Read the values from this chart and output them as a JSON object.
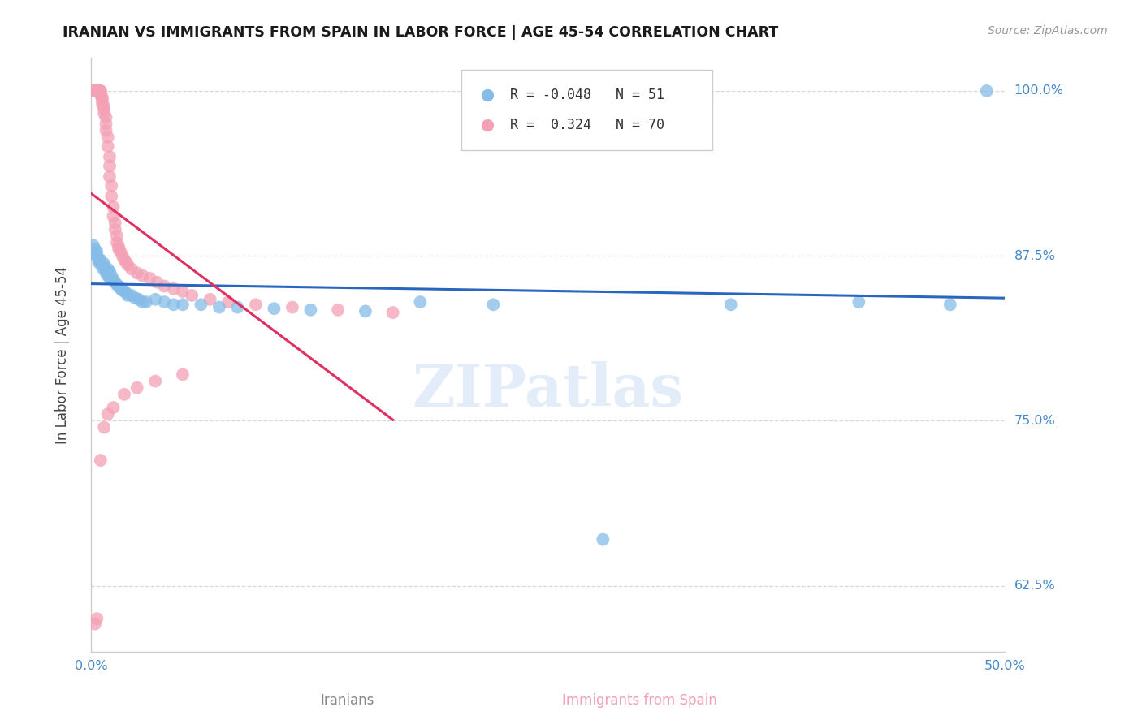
{
  "title": "IRANIAN VS IMMIGRANTS FROM SPAIN IN LABOR FORCE | AGE 45-54 CORRELATION CHART",
  "source": "Source: ZipAtlas.com",
  "ylabel": "In Labor Force | Age 45-54",
  "xlabel_iranians": "Iranians",
  "xlabel_spain": "Immigrants from Spain",
  "xmin": 0.0,
  "xmax": 0.5,
  "ymin": 0.575,
  "ymax": 1.025,
  "yticks": [
    0.625,
    0.75,
    0.875,
    1.0
  ],
  "ytick_labels": [
    "62.5%",
    "75.0%",
    "87.5%",
    "100.0%"
  ],
  "xticks": [
    0.0,
    0.1,
    0.2,
    0.3,
    0.4,
    0.5
  ],
  "xtick_labels": [
    "0.0%",
    "",
    "",
    "",
    "",
    "50.0%"
  ],
  "R_iranians": -0.048,
  "N_iranians": 51,
  "R_spain": 0.324,
  "N_spain": 70,
  "color_iranians": "#85bce8",
  "color_spain": "#f4a0b5",
  "line_color_iranians": "#2866c0",
  "line_color_spain": "#e03060",
  "watermark": "ZIPatlas",
  "background_color": "#ffffff",
  "grid_color": "#d8d8d8",
  "axis_color": "#cccccc",
  "right_label_color": "#4488cc",
  "iranians_x": [
    0.001,
    0.002,
    0.002,
    0.003,
    0.003,
    0.004,
    0.004,
    0.005,
    0.005,
    0.006,
    0.006,
    0.007,
    0.007,
    0.008,
    0.008,
    0.009,
    0.009,
    0.01,
    0.01,
    0.011,
    0.012,
    0.013,
    0.014,
    0.015,
    0.016,
    0.017,
    0.018,
    0.019,
    0.02,
    0.022,
    0.024,
    0.026,
    0.028,
    0.03,
    0.035,
    0.04,
    0.045,
    0.05,
    0.06,
    0.07,
    0.08,
    0.1,
    0.12,
    0.15,
    0.18,
    0.22,
    0.28,
    0.35,
    0.42,
    0.47,
    0.49
  ],
  "iranians_y": [
    0.883,
    0.876,
    0.88,
    0.875,
    0.878,
    0.872,
    0.87,
    0.87,
    0.872,
    0.868,
    0.866,
    0.869,
    0.867,
    0.864,
    0.862,
    0.86,
    0.865,
    0.863,
    0.858,
    0.86,
    0.857,
    0.855,
    0.853,
    0.852,
    0.85,
    0.849,
    0.848,
    0.847,
    0.845,
    0.845,
    0.843,
    0.842,
    0.84,
    0.84,
    0.842,
    0.84,
    0.838,
    0.838,
    0.838,
    0.836,
    0.836,
    0.835,
    0.834,
    0.833,
    0.84,
    0.838,
    0.66,
    0.838,
    0.84,
    0.838,
    1.0
  ],
  "spain_x": [
    0.001,
    0.001,
    0.002,
    0.002,
    0.002,
    0.003,
    0.003,
    0.003,
    0.003,
    0.004,
    0.004,
    0.004,
    0.005,
    0.005,
    0.005,
    0.005,
    0.006,
    0.006,
    0.006,
    0.007,
    0.007,
    0.007,
    0.008,
    0.008,
    0.008,
    0.009,
    0.009,
    0.01,
    0.01,
    0.01,
    0.011,
    0.011,
    0.012,
    0.012,
    0.013,
    0.013,
    0.014,
    0.014,
    0.015,
    0.015,
    0.016,
    0.017,
    0.018,
    0.019,
    0.02,
    0.022,
    0.025,
    0.028,
    0.032,
    0.036,
    0.04,
    0.045,
    0.05,
    0.055,
    0.065,
    0.075,
    0.09,
    0.11,
    0.135,
    0.165,
    0.002,
    0.003,
    0.005,
    0.007,
    0.009,
    0.012,
    0.018,
    0.025,
    0.035,
    0.05
  ],
  "spain_y": [
    1.0,
    1.0,
    1.0,
    1.0,
    1.0,
    1.0,
    1.0,
    1.0,
    1.0,
    1.0,
    1.0,
    1.0,
    1.0,
    1.0,
    0.998,
    0.997,
    0.995,
    0.993,
    0.99,
    0.988,
    0.986,
    0.983,
    0.98,
    0.975,
    0.97,
    0.965,
    0.958,
    0.95,
    0.943,
    0.935,
    0.928,
    0.92,
    0.912,
    0.905,
    0.9,
    0.895,
    0.89,
    0.885,
    0.882,
    0.88,
    0.878,
    0.875,
    0.872,
    0.87,
    0.868,
    0.865,
    0.862,
    0.86,
    0.858,
    0.855,
    0.852,
    0.85,
    0.848,
    0.845,
    0.842,
    0.84,
    0.838,
    0.836,
    0.834,
    0.832,
    0.596,
    0.6,
    0.72,
    0.745,
    0.755,
    0.76,
    0.77,
    0.775,
    0.78,
    0.785
  ]
}
